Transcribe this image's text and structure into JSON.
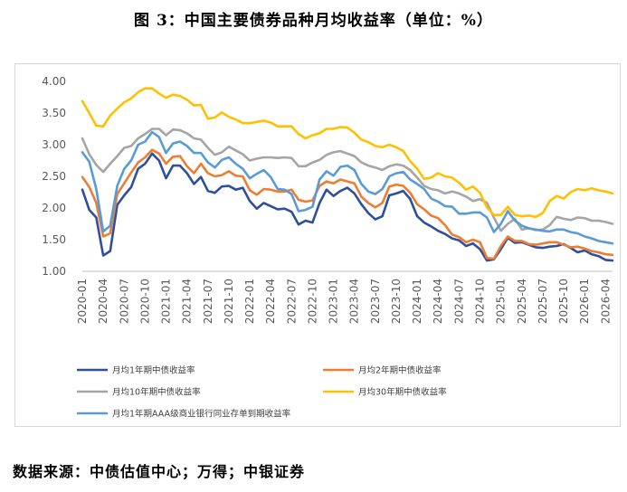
{
  "figure": {
    "title": "图 3：中国主要债券品种月均收益率（单位：%）",
    "source": "数据来源：中债估值中心；万得；中银证券"
  },
  "chart_data": {
    "type": "line",
    "x": [
      "2020-01",
      "2020-02",
      "2020-03",
      "2020-04",
      "2020-05",
      "2020-06",
      "2020-07",
      "2020-08",
      "2020-09",
      "2020-10",
      "2020-11",
      "2020-12",
      "2021-01",
      "2021-02",
      "2021-03",
      "2021-04",
      "2021-05",
      "2021-06",
      "2021-07",
      "2021-08",
      "2021-09",
      "2021-10",
      "2021-11",
      "2021-12",
      "2022-01",
      "2022-02",
      "2022-03",
      "2022-04",
      "2022-05",
      "2022-06",
      "2022-07",
      "2022-08",
      "2022-09",
      "2022-10",
      "2022-11",
      "2022-12",
      "2023-01",
      "2023-02",
      "2023-03",
      "2023-04",
      "2023-05",
      "2023-06",
      "2023-07",
      "2023-08",
      "2023-09",
      "2023-10",
      "2023-11",
      "2023-12",
      "2024-01",
      "2024-02",
      "2024-03",
      "2024-04",
      "2024-05",
      "2024-06",
      "2024-07",
      "2024-08",
      "2024-09",
      "2024-10",
      "2024-11",
      "2024-12",
      "2025-01",
      "2025-02",
      "2025-03",
      "2025-04",
      "2025-05",
      "2025-06",
      "2025-07",
      "2025-08",
      "2025-09",
      "2025-10",
      "2025-11",
      "2025-12",
      "2026-01",
      "2026-02",
      "2026-03",
      "2026-04",
      "2026-05"
    ],
    "xticks": [
      "2020-01",
      "2020-04",
      "2020-07",
      "2020-10",
      "2021-01",
      "2021-04",
      "2021-07",
      "2021-10",
      "2022-01",
      "2022-04",
      "2022-07",
      "2022-10",
      "2023-01",
      "2023-04",
      "2023-07",
      "2023-10",
      "2024-01",
      "2024-04",
      "2024-07",
      "2024-10",
      "2025-01",
      "2025-04",
      "2025-07",
      "2025-10",
      "2026-01",
      "2026-04"
    ],
    "ylim": [
      1.0,
      4.0
    ],
    "yticks": [
      "1.00",
      "1.50",
      "2.00",
      "2.50",
      "3.00",
      "3.50",
      "4.00"
    ],
    "grid": "none",
    "legend_position": "bottom",
    "series": [
      {
        "name": "月均1年期中债收益率",
        "color": "#2e4f9c",
        "values": [
          2.29,
          1.97,
          1.85,
          1.25,
          1.32,
          2.05,
          2.2,
          2.33,
          2.62,
          2.7,
          2.86,
          2.75,
          2.47,
          2.67,
          2.67,
          2.55,
          2.38,
          2.49,
          2.27,
          2.24,
          2.34,
          2.35,
          2.29,
          2.32,
          2.11,
          1.99,
          2.08,
          2.03,
          1.98,
          1.99,
          1.94,
          1.74,
          1.8,
          1.77,
          2.08,
          2.29,
          2.19,
          2.27,
          2.32,
          2.23,
          2.06,
          1.92,
          1.82,
          1.87,
          2.2,
          2.23,
          2.27,
          2.14,
          1.87,
          1.77,
          1.71,
          1.64,
          1.59,
          1.52,
          1.49,
          1.4,
          1.44,
          1.35,
          1.17,
          1.19,
          1.35,
          1.53,
          1.45,
          1.46,
          1.42,
          1.38,
          1.37,
          1.39,
          1.4,
          1.43,
          1.37,
          1.3,
          1.33,
          1.27,
          1.24,
          1.18,
          1.17
        ]
      },
      {
        "name": "月均2年期中债收益率",
        "color": "#ed7d31",
        "values": [
          2.49,
          2.33,
          2.08,
          1.55,
          1.6,
          2.22,
          2.39,
          2.56,
          2.72,
          2.8,
          2.92,
          2.86,
          2.7,
          2.81,
          2.82,
          2.66,
          2.55,
          2.7,
          2.55,
          2.5,
          2.52,
          2.58,
          2.51,
          2.5,
          2.28,
          2.21,
          2.3,
          2.29,
          2.26,
          2.26,
          2.29,
          2.13,
          2.1,
          2.12,
          2.35,
          2.42,
          2.39,
          2.45,
          2.42,
          2.39,
          2.18,
          2.08,
          2.01,
          2.08,
          2.34,
          2.37,
          2.35,
          2.24,
          2.06,
          1.98,
          1.88,
          1.84,
          1.73,
          1.58,
          1.54,
          1.46,
          1.5,
          1.46,
          1.21,
          1.2,
          1.4,
          1.55,
          1.48,
          1.48,
          1.43,
          1.42,
          1.44,
          1.46,
          1.46,
          1.42,
          1.38,
          1.39,
          1.36,
          1.32,
          1.3,
          1.27,
          1.26
        ]
      },
      {
        "name": "月均10年期中债收益率",
        "color": "#a5a5a5",
        "values": [
          3.1,
          2.85,
          2.68,
          2.57,
          2.7,
          2.82,
          2.95,
          2.98,
          3.1,
          3.17,
          3.25,
          3.25,
          3.15,
          3.24,
          3.23,
          3.18,
          3.1,
          3.08,
          2.95,
          2.84,
          2.88,
          2.97,
          2.91,
          2.85,
          2.75,
          2.78,
          2.8,
          2.8,
          2.79,
          2.8,
          2.79,
          2.66,
          2.66,
          2.72,
          2.76,
          2.84,
          2.88,
          2.9,
          2.86,
          2.82,
          2.72,
          2.67,
          2.64,
          2.6,
          2.66,
          2.69,
          2.67,
          2.6,
          2.48,
          2.35,
          2.3,
          2.28,
          2.23,
          2.26,
          2.23,
          2.18,
          2.11,
          2.14,
          2.08,
          1.85,
          1.64,
          1.75,
          1.83,
          1.66,
          1.68,
          1.65,
          1.66,
          1.73,
          1.86,
          1.83,
          1.81,
          1.85,
          1.84,
          1.8,
          1.8,
          1.78,
          1.75
        ]
      },
      {
        "name": "月均30年期中债收益率",
        "color": "#ffc000",
        "values": [
          3.69,
          3.5,
          3.3,
          3.29,
          3.46,
          3.57,
          3.67,
          3.73,
          3.83,
          3.89,
          3.89,
          3.81,
          3.74,
          3.79,
          3.77,
          3.71,
          3.62,
          3.63,
          3.41,
          3.43,
          3.51,
          3.44,
          3.4,
          3.34,
          3.34,
          3.36,
          3.38,
          3.35,
          3.29,
          3.29,
          3.29,
          3.17,
          3.1,
          3.15,
          3.18,
          3.25,
          3.25,
          3.28,
          3.27,
          3.19,
          3.08,
          3.04,
          2.98,
          2.96,
          3.0,
          2.96,
          2.9,
          2.74,
          2.62,
          2.46,
          2.48,
          2.55,
          2.5,
          2.48,
          2.4,
          2.29,
          2.34,
          2.24,
          2.01,
          1.89,
          1.89,
          2.02,
          1.89,
          1.87,
          1.88,
          1.86,
          1.92,
          2.11,
          2.19,
          2.15,
          2.25,
          2.3,
          2.28,
          2.31,
          2.28,
          2.26,
          2.23
        ]
      },
      {
        "name": "月均1年期AAA级商业银行同业存单到期收益率",
        "color": "#5b9bd5",
        "values": [
          2.88,
          2.73,
          2.3,
          1.63,
          1.72,
          2.35,
          2.62,
          2.75,
          3.0,
          3.05,
          3.2,
          3.12,
          2.87,
          3.02,
          3.05,
          2.98,
          2.87,
          2.87,
          2.72,
          2.64,
          2.76,
          2.8,
          2.7,
          2.62,
          2.47,
          2.54,
          2.6,
          2.49,
          2.3,
          2.29,
          2.22,
          1.95,
          1.97,
          2.02,
          2.45,
          2.58,
          2.51,
          2.65,
          2.67,
          2.6,
          2.38,
          2.26,
          2.22,
          2.3,
          2.5,
          2.55,
          2.57,
          2.45,
          2.38,
          2.3,
          2.15,
          2.1,
          2.03,
          2.02,
          1.91,
          1.91,
          1.93,
          1.93,
          1.85,
          1.62,
          1.75,
          1.95,
          1.8,
          1.72,
          1.68,
          1.66,
          1.64,
          1.63,
          1.66,
          1.66,
          1.62,
          1.6,
          1.55,
          1.52,
          1.48,
          1.46,
          1.44
        ]
      }
    ]
  }
}
